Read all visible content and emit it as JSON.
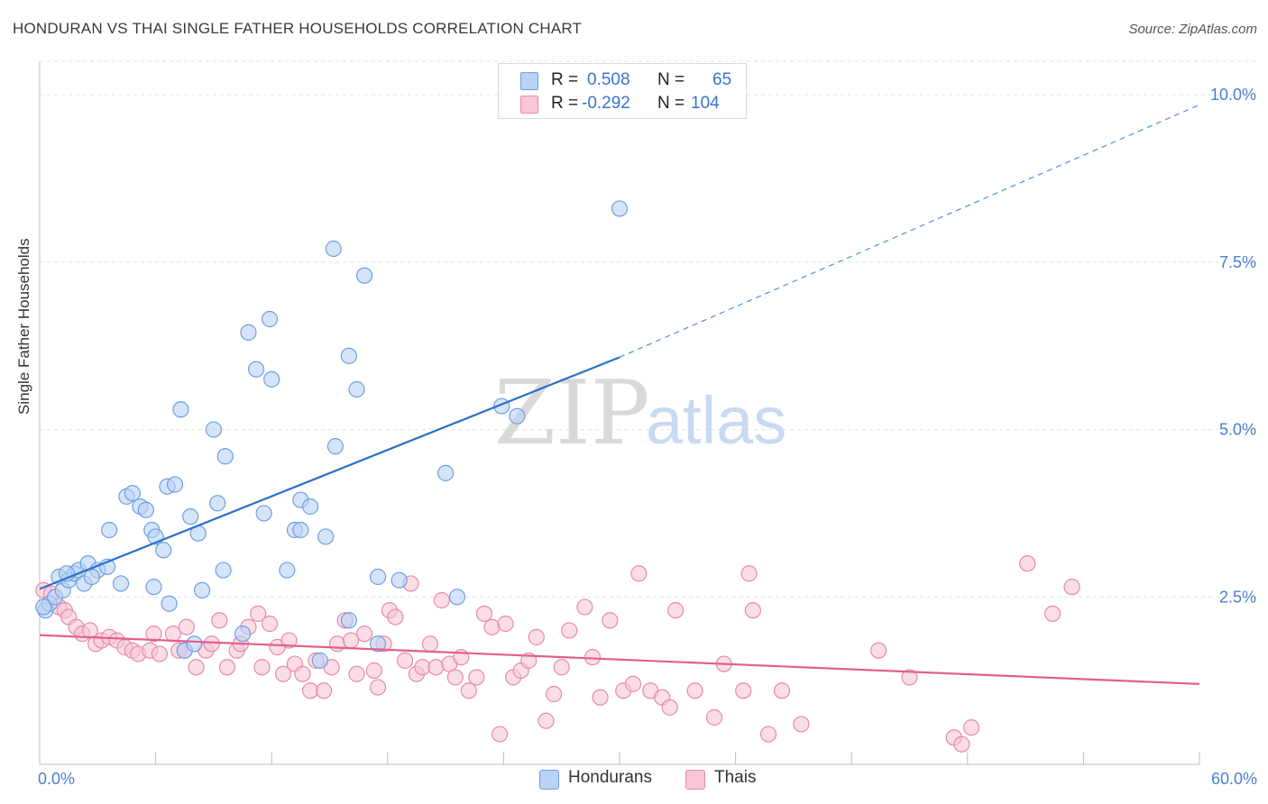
{
  "chart_data": {
    "type": "scatter",
    "title": "HONDURAN VS THAI SINGLE FATHER HOUSEHOLDS CORRELATION CHART",
    "source": "Source: ZipAtlas.com",
    "xlabel": "",
    "ylabel": "Single Father Households",
    "xlim": [
      0,
      60
    ],
    "ylim": [
      0,
      10.5
    ],
    "x_tick_labels": [
      "0.0%",
      "60.0%"
    ],
    "y_ticks": [
      2.5,
      5.0,
      7.5,
      10.0
    ],
    "y_tick_labels": [
      "2.5%",
      "5.0%",
      "7.5%",
      "10.0%"
    ],
    "watermark": "ZIPatlas",
    "series": [
      {
        "name": "Hondurans",
        "color": "#6f9fe0",
        "fill": "#b9d2f5",
        "line_color": "#2b6fcc",
        "R": "0.508",
        "N": "65",
        "trend": {
          "x0": 0,
          "y0": 2.62,
          "x1": 30,
          "y1": 6.08,
          "x_ext": 60,
          "y_ext": 9.85
        },
        "points": [
          [
            0.3,
            2.3
          ],
          [
            0.5,
            2.4
          ],
          [
            0.8,
            2.5
          ],
          [
            1.0,
            2.8
          ],
          [
            1.2,
            2.6
          ],
          [
            1.5,
            2.75
          ],
          [
            1.8,
            2.85
          ],
          [
            2.0,
            2.9
          ],
          [
            2.3,
            2.7
          ],
          [
            2.5,
            3.0
          ],
          [
            3.0,
            2.9
          ],
          [
            3.5,
            2.95
          ],
          [
            4.2,
            2.7
          ],
          [
            2.7,
            2.8
          ],
          [
            1.4,
            2.85
          ],
          [
            3.6,
            3.5
          ],
          [
            4.5,
            4.0
          ],
          [
            4.8,
            4.05
          ],
          [
            5.2,
            3.85
          ],
          [
            5.5,
            3.8
          ],
          [
            5.8,
            3.5
          ],
          [
            6.0,
            3.4
          ],
          [
            6.4,
            3.2
          ],
          [
            6.6,
            4.15
          ],
          [
            7.0,
            4.18
          ],
          [
            5.9,
            2.65
          ],
          [
            6.7,
            2.4
          ],
          [
            7.5,
            1.7
          ],
          [
            7.8,
            3.7
          ],
          [
            8.2,
            3.45
          ],
          [
            8.4,
            2.6
          ],
          [
            9.0,
            5.0
          ],
          [
            9.2,
            3.9
          ],
          [
            9.5,
            2.9
          ],
          [
            9.6,
            4.6
          ],
          [
            7.3,
            5.3
          ],
          [
            10.5,
            1.95
          ],
          [
            10.8,
            6.45
          ],
          [
            11.2,
            5.9
          ],
          [
            11.6,
            3.75
          ],
          [
            12.0,
            5.75
          ],
          [
            11.9,
            6.65
          ],
          [
            13.2,
            3.5
          ],
          [
            13.5,
            3.95
          ],
          [
            14.0,
            3.85
          ],
          [
            12.8,
            2.9
          ],
          [
            13.5,
            3.5
          ],
          [
            14.5,
            1.55
          ],
          [
            14.8,
            3.4
          ],
          [
            15.3,
            4.75
          ],
          [
            15.2,
            7.7
          ],
          [
            16.0,
            6.1
          ],
          [
            16.4,
            5.6
          ],
          [
            16.8,
            7.3
          ],
          [
            17.5,
            2.8
          ],
          [
            17.5,
            1.8
          ],
          [
            18.6,
            2.75
          ],
          [
            21.0,
            4.35
          ],
          [
            21.6,
            2.5
          ],
          [
            23.9,
            5.35
          ],
          [
            24.7,
            5.2
          ],
          [
            30.0,
            8.3
          ],
          [
            16.0,
            2.15
          ],
          [
            8.0,
            1.8
          ],
          [
            0.2,
            2.35
          ]
        ]
      },
      {
        "name": "Thais",
        "color": "#e78aab",
        "fill": "#f8c6d6",
        "line_color": "#e0608e",
        "R": "-0.292",
        "N": "104",
        "trend": {
          "x0": 0,
          "y0": 1.93,
          "x1": 60,
          "y1": 1.2
        },
        "points": [
          [
            0.2,
            2.6
          ],
          [
            0.6,
            2.55
          ],
          [
            1.0,
            2.35
          ],
          [
            1.3,
            2.3
          ],
          [
            1.5,
            2.2
          ],
          [
            1.9,
            2.05
          ],
          [
            2.2,
            1.95
          ],
          [
            2.6,
            2.0
          ],
          [
            2.9,
            1.8
          ],
          [
            3.2,
            1.85
          ],
          [
            3.6,
            1.9
          ],
          [
            4.0,
            1.85
          ],
          [
            4.4,
            1.75
          ],
          [
            4.8,
            1.7
          ],
          [
            5.1,
            1.65
          ],
          [
            5.7,
            1.7
          ],
          [
            5.9,
            1.95
          ],
          [
            6.2,
            1.65
          ],
          [
            6.9,
            1.95
          ],
          [
            7.2,
            1.7
          ],
          [
            7.5,
            1.7
          ],
          [
            7.6,
            2.05
          ],
          [
            8.1,
            1.45
          ],
          [
            8.6,
            1.7
          ],
          [
            8.9,
            1.8
          ],
          [
            9.3,
            2.15
          ],
          [
            9.7,
            1.45
          ],
          [
            10.2,
            1.7
          ],
          [
            10.4,
            1.8
          ],
          [
            10.8,
            2.05
          ],
          [
            11.3,
            2.25
          ],
          [
            11.5,
            1.45
          ],
          [
            11.9,
            2.1
          ],
          [
            12.3,
            1.75
          ],
          [
            12.6,
            1.35
          ],
          [
            12.9,
            1.85
          ],
          [
            13.2,
            1.5
          ],
          [
            13.6,
            1.35
          ],
          [
            14.0,
            1.1
          ],
          [
            14.3,
            1.55
          ],
          [
            14.7,
            1.1
          ],
          [
            15.1,
            1.45
          ],
          [
            15.4,
            1.8
          ],
          [
            15.8,
            2.15
          ],
          [
            16.1,
            1.85
          ],
          [
            16.4,
            1.35
          ],
          [
            16.8,
            1.95
          ],
          [
            17.3,
            1.4
          ],
          [
            17.5,
            1.15
          ],
          [
            17.8,
            1.8
          ],
          [
            18.1,
            2.3
          ],
          [
            18.4,
            2.2
          ],
          [
            18.9,
            1.55
          ],
          [
            19.2,
            2.7
          ],
          [
            19.5,
            1.35
          ],
          [
            19.8,
            1.45
          ],
          [
            20.2,
            1.8
          ],
          [
            20.5,
            1.45
          ],
          [
            20.8,
            2.45
          ],
          [
            21.2,
            1.5
          ],
          [
            21.5,
            1.3
          ],
          [
            21.8,
            1.6
          ],
          [
            22.2,
            1.1
          ],
          [
            22.6,
            1.3
          ],
          [
            23.0,
            2.25
          ],
          [
            23.4,
            2.05
          ],
          [
            23.8,
            0.45
          ],
          [
            24.1,
            2.1
          ],
          [
            24.5,
            1.3
          ],
          [
            24.9,
            1.4
          ],
          [
            25.3,
            1.55
          ],
          [
            25.7,
            1.9
          ],
          [
            26.2,
            0.65
          ],
          [
            26.6,
            1.05
          ],
          [
            27.0,
            1.45
          ],
          [
            27.4,
            2.0
          ],
          [
            28.2,
            2.35
          ],
          [
            28.6,
            1.6
          ],
          [
            29.0,
            1.0
          ],
          [
            29.5,
            2.15
          ],
          [
            30.2,
            1.1
          ],
          [
            30.7,
            1.2
          ],
          [
            31.0,
            2.85
          ],
          [
            31.6,
            1.1
          ],
          [
            32.2,
            1.0
          ],
          [
            32.6,
            0.85
          ],
          [
            32.9,
            2.3
          ],
          [
            33.9,
            1.1
          ],
          [
            34.9,
            0.7
          ],
          [
            35.4,
            1.5
          ],
          [
            36.4,
            1.1
          ],
          [
            36.7,
            2.85
          ],
          [
            36.9,
            2.3
          ],
          [
            37.7,
            0.45
          ],
          [
            38.4,
            1.1
          ],
          [
            39.4,
            0.6
          ],
          [
            43.4,
            1.7
          ],
          [
            45.0,
            1.3
          ],
          [
            47.3,
            0.4
          ],
          [
            47.7,
            0.3
          ],
          [
            48.2,
            0.55
          ],
          [
            51.1,
            3.0
          ],
          [
            52.4,
            2.25
          ],
          [
            53.4,
            2.65
          ]
        ]
      }
    ]
  },
  "stats": {
    "r_label": "R =",
    "n_label": "N =",
    "rows": [
      {
        "series": "Hondurans",
        "r": "0.508",
        "n": "65"
      },
      {
        "series": "Thais",
        "r": "-0.292",
        "n": "104"
      }
    ]
  },
  "legend": {
    "items": [
      "Hondurans",
      "Thais"
    ]
  }
}
